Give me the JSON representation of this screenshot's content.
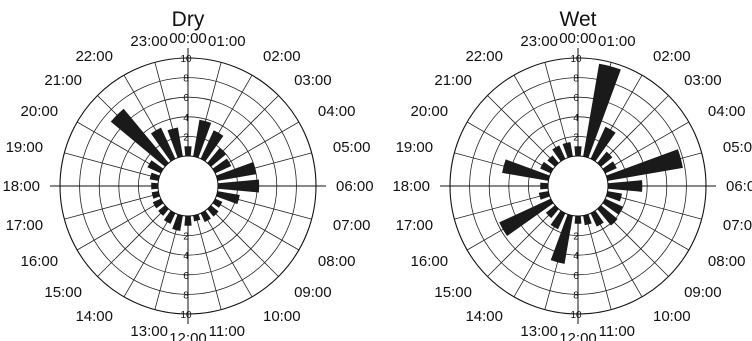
{
  "chart_data": [
    {
      "type": "rose",
      "title": "Dry",
      "hour_labels": [
        "00:00",
        "01:00",
        "02:00",
        "03:00",
        "04:00",
        "05:00",
        "06:00",
        "07:00",
        "08:00",
        "09:00",
        "10:00",
        "11:00",
        "12:00",
        "13:00",
        "14:00",
        "15:00",
        "16:00",
        "17:00",
        "18:00",
        "19:00",
        "20:00",
        "21:00",
        "22:00",
        "23:00"
      ],
      "ring_labels": [
        "2",
        "4",
        "6",
        "8",
        "10"
      ],
      "rlim": [
        0,
        10
      ],
      "values": [
        1.0,
        3.8,
        3.2,
        2.0,
        1.8,
        4.0,
        4.2,
        2.3,
        0.8,
        1.0,
        1.0,
        0.6,
        1.0,
        1.6,
        1.2,
        0.9,
        0.9,
        0.7,
        0.7,
        0.9,
        1.5,
        7.2,
        3.5,
        3.0
      ],
      "bar_color": "#1a1a1a",
      "grid": true
    },
    {
      "type": "rose",
      "title": "Wet",
      "hour_labels": [
        "00:00",
        "01:00",
        "02:00",
        "03:00",
        "04:00",
        "05:00",
        "06:00",
        "07:00",
        "08:00",
        "09:00",
        "10:00",
        "11:00",
        "12:00",
        "13:00",
        "14:00",
        "15:00",
        "16:00",
        "17:00",
        "18:00",
        "19:00",
        "20:00",
        "21:00",
        "22:00",
        "23:00"
      ],
      "ring_labels": [
        "2",
        "4",
        "6",
        "8",
        "10"
      ],
      "rlim": [
        0,
        10
      ],
      "values": [
        1.0,
        9.6,
        3.6,
        1.5,
        1.3,
        7.8,
        3.5,
        1.5,
        2.0,
        2.2,
        1.5,
        1.0,
        0.8,
        5.0,
        1.8,
        1.2,
        5.8,
        1.0,
        0.8,
        4.8,
        1.2,
        1.0,
        1.5,
        1.5
      ],
      "bar_color": "#1a1a1a",
      "grid": true
    }
  ]
}
